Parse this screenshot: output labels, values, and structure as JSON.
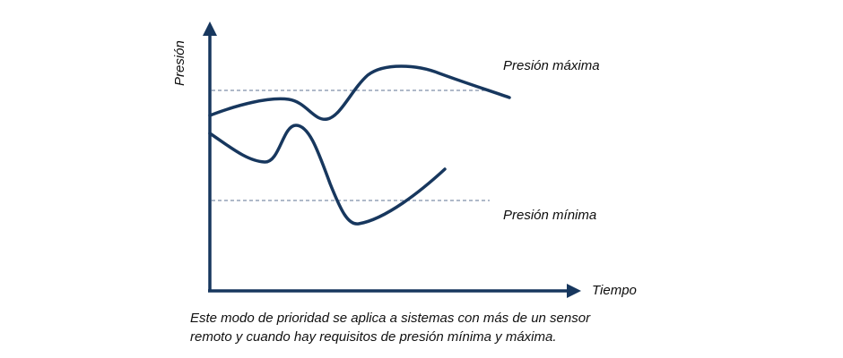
{
  "diagram": {
    "y_axis_label": "Presión",
    "x_axis_label": "Tiempo",
    "max_curve_label": "Presión máxima",
    "min_curve_label": "Presión mínima"
  },
  "caption": {
    "line1": "Este modo de prioridad se aplica a sistemas con más de un sensor",
    "line2": "remoto y cuando hay requisitos de presión mínima y máxima."
  },
  "colors": {
    "curve": "#17375e",
    "axis": "#17375e",
    "reference_line": "#7f8fa9"
  }
}
